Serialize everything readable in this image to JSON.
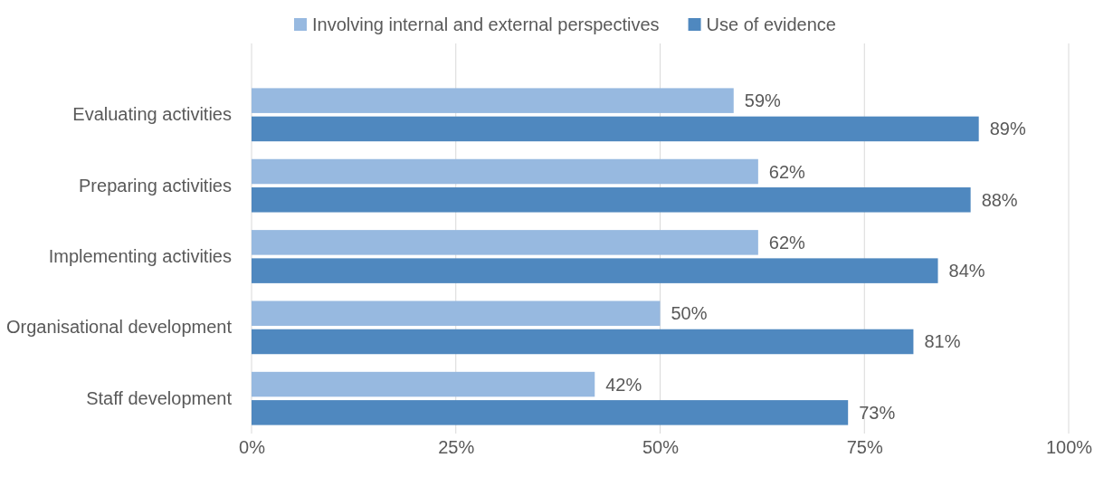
{
  "chart_data": {
    "type": "bar",
    "orientation": "horizontal",
    "categories": [
      "Evaluating activities",
      "Preparing activities",
      "Implementing activities",
      "Organisational development",
      "Staff development"
    ],
    "series": [
      {
        "name": "Involving internal and external perspectives",
        "color": "#97b9e0",
        "values": [
          59,
          62,
          62,
          50,
          42
        ],
        "value_labels": [
          "59%",
          "62%",
          "62%",
          "50%",
          "42%"
        ]
      },
      {
        "name": "Use of evidence",
        "color": "#4f88bf",
        "values": [
          89,
          88,
          84,
          81,
          73
        ],
        "value_labels": [
          "89%",
          "88%",
          "84%",
          "81%",
          "73%"
        ]
      }
    ],
    "xlim": [
      0,
      100
    ],
    "xticks": [
      {
        "value": 0,
        "label": "0%"
      },
      {
        "value": 25,
        "label": "25%"
      },
      {
        "value": 50,
        "label": "50%"
      },
      {
        "value": 75,
        "label": "75%"
      },
      {
        "value": 100,
        "label": "100%"
      }
    ],
    "grid": "x",
    "legend": "top"
  }
}
